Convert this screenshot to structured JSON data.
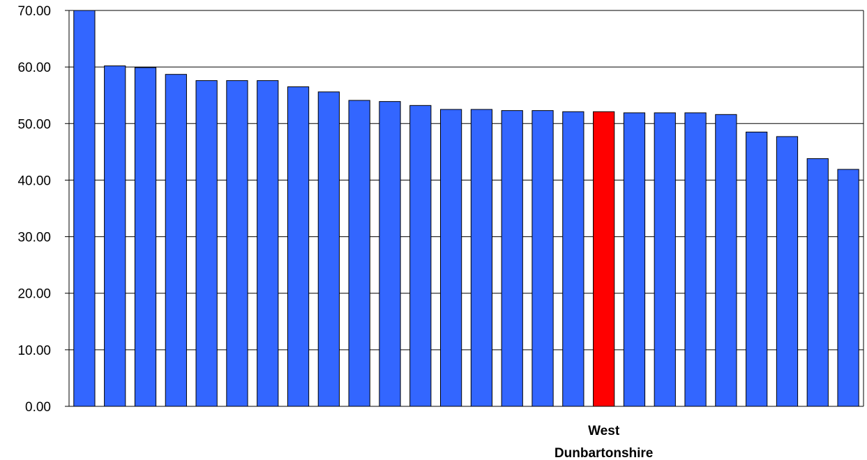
{
  "chart_data": {
    "type": "bar",
    "ylim": [
      0,
      70
    ],
    "yticks": [
      "0.00",
      "10.00",
      "20.00",
      "30.00",
      "40.00",
      "50.00",
      "60.00",
      "70.00"
    ],
    "grid": true,
    "highlight_label_lines": [
      "West",
      "Dunbartonshire"
    ],
    "highlight_index": 17,
    "colors": {
      "default": "#3366FF",
      "highlight": "#FF0000"
    },
    "values": [
      70.0,
      60.2,
      59.9,
      58.7,
      57.6,
      57.6,
      57.6,
      56.5,
      55.6,
      54.1,
      53.9,
      53.2,
      52.5,
      52.5,
      52.3,
      52.3,
      52.1,
      52.1,
      51.9,
      51.9,
      51.9,
      51.6,
      48.5,
      47.7,
      43.8,
      41.9
    ]
  }
}
